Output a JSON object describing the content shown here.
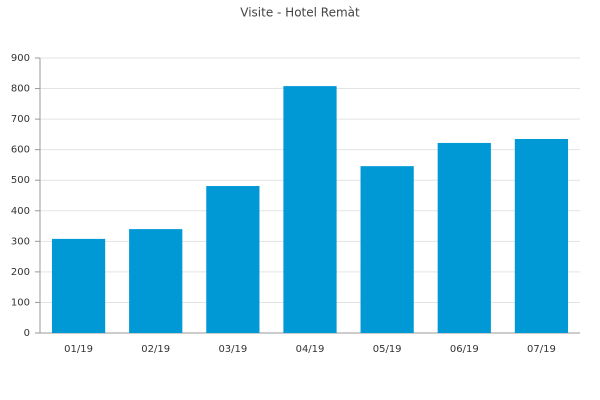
{
  "chart_data": {
    "type": "bar",
    "title": "Visite - Hotel Remàt",
    "categories": [
      "01/19",
      "02/19",
      "03/19",
      "04/19",
      "05/19",
      "06/19",
      "07/19"
    ],
    "values": [
      308,
      340,
      481,
      808,
      546,
      622,
      635
    ],
    "color": "#0099d6",
    "ylim": [
      0,
      900
    ],
    "yticks": [
      0,
      100,
      200,
      300,
      400,
      500,
      600,
      700,
      800,
      900
    ],
    "grid": true
  }
}
